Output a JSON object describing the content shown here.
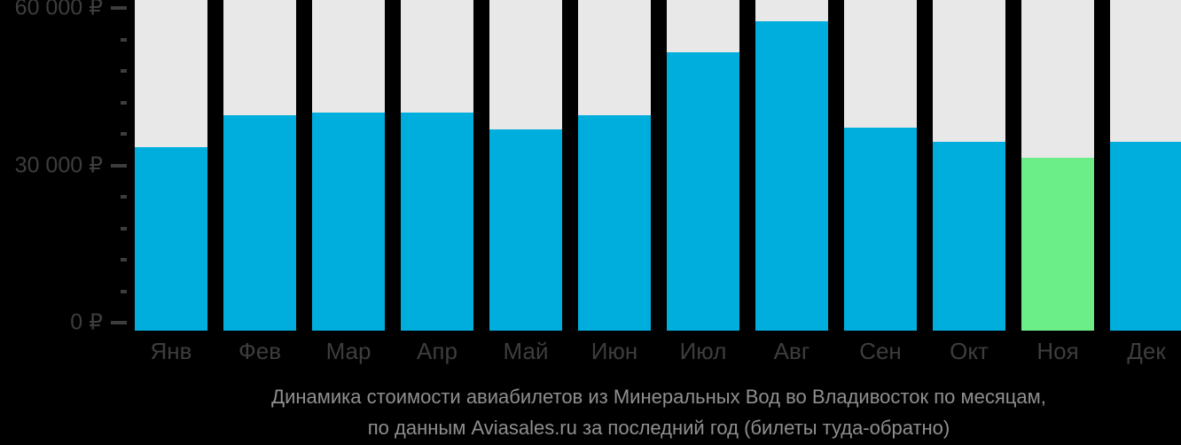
{
  "chart_data": {
    "type": "bar",
    "title_line1": "Динамика стоимости авиабилетов из Минеральных Вод во Владивосток по месяцам,",
    "title_line2": "по данным Aviasales.ru за последний год (билеты туда-обратно)",
    "categories": [
      "Янв",
      "Фев",
      "Мар",
      "Апр",
      "Май",
      "Июн",
      "Июл",
      "Авг",
      "Сен",
      "Окт",
      "Ноя",
      "Дек"
    ],
    "values": [
      33500,
      39500,
      40000,
      40000,
      36800,
      39500,
      51500,
      57500,
      37200,
      34400,
      31500,
      34400
    ],
    "highlight_index": 10,
    "currency_suffix": " ₽",
    "y_axis": {
      "ylim": [
        0,
        60000
      ],
      "minor_tick_step": 6000,
      "labeled_ticks": [
        {
          "value": 0,
          "label": "0 ₽"
        },
        {
          "value": 30000,
          "label": "30 000 ₽"
        },
        {
          "value": 60000,
          "label": "60 000 ₽"
        }
      ]
    },
    "grid": false,
    "legend": false,
    "colors": {
      "bar": "#00aedd",
      "highlight": "#6bee87",
      "track": "#e8e8e8",
      "background": "#000000",
      "axis_text": "#3d3d3d",
      "tick": "#3d3d3d",
      "title_text": "#8f8f8f"
    }
  }
}
